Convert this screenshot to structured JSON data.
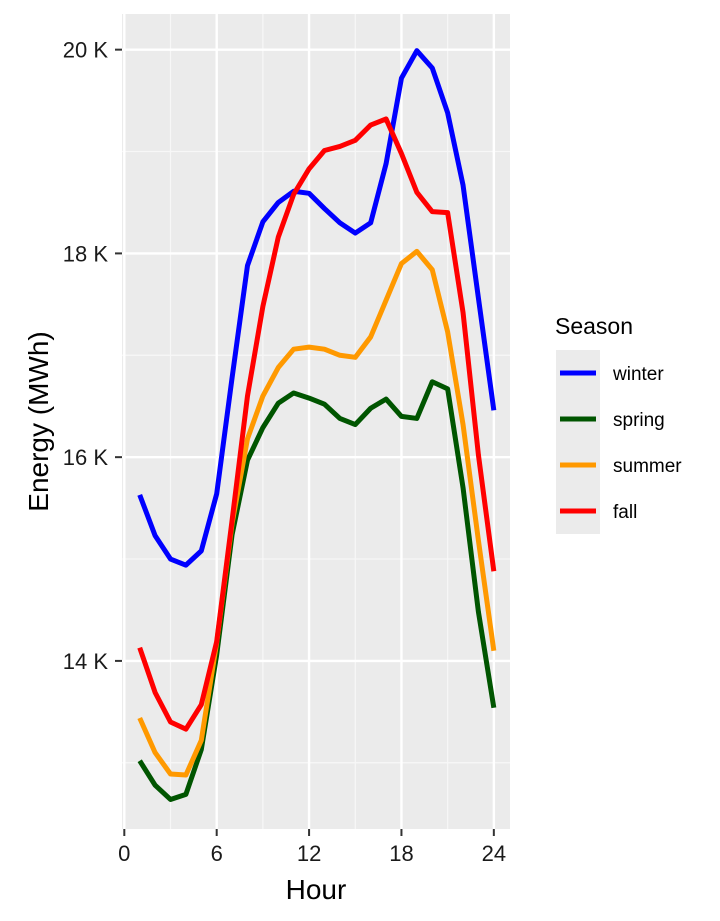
{
  "chart_data": {
    "type": "line",
    "xlabel": "Hour",
    "ylabel": "Energy (MWh)",
    "xlim": [
      -0.15,
      25.05
    ],
    "ylim": [
      12350,
      20350
    ],
    "x_ticks": [
      0,
      6,
      12,
      18,
      24
    ],
    "x_tick_labels": [
      "0",
      "6",
      "12",
      "18",
      "24"
    ],
    "y_ticks": [
      14000,
      16000,
      18000,
      20000
    ],
    "y_tick_labels": [
      "14 K",
      "16 K",
      "18 K",
      "20 K"
    ],
    "grid": true,
    "legend": {
      "title": "Season",
      "placement": "right"
    },
    "x": [
      1,
      2,
      3,
      4,
      5,
      6,
      7,
      8,
      9,
      10,
      11,
      12,
      13,
      14,
      15,
      16,
      17,
      18,
      19,
      20,
      21,
      22,
      23,
      24
    ],
    "series": [
      {
        "name": "winter",
        "color": "#0000FF",
        "values": [
          15630,
          15230,
          15000,
          14940,
          15080,
          15640,
          16780,
          17880,
          18310,
          18500,
          18610,
          18590,
          18440,
          18300,
          18200,
          18300,
          18880,
          19720,
          19990,
          19820,
          19380,
          18670,
          17560,
          16460
        ]
      },
      {
        "name": "spring",
        "color": "#005500",
        "values": [
          13020,
          12780,
          12640,
          12690,
          13130,
          14060,
          15240,
          15970,
          16290,
          16530,
          16630,
          16580,
          16520,
          16380,
          16320,
          16480,
          16570,
          16400,
          16380,
          16740,
          16670,
          15700,
          14480,
          13540
        ]
      },
      {
        "name": "summer",
        "color": "#FF9900",
        "values": [
          13440,
          13100,
          12890,
          12880,
          13220,
          14180,
          15350,
          16180,
          16600,
          16880,
          17060,
          17080,
          17060,
          17000,
          16980,
          17180,
          17540,
          17900,
          18020,
          17840,
          17230,
          16320,
          15180,
          14100
        ]
      },
      {
        "name": "fall",
        "color": "#FF0000",
        "values": [
          14130,
          13690,
          13400,
          13330,
          13570,
          14190,
          15380,
          16600,
          17480,
          18160,
          18580,
          18830,
          19010,
          19050,
          19110,
          19260,
          19320,
          18980,
          18600,
          18410,
          18400,
          17420,
          16020,
          14880
        ]
      }
    ]
  }
}
